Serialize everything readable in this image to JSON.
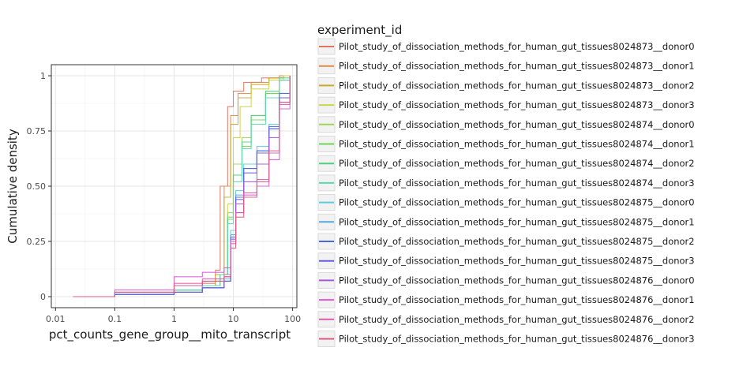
{
  "chart_data": {
    "type": "line",
    "title": "",
    "xlabel": "pct_counts_gene_group__mito_transcript",
    "ylabel": "Cumulative density",
    "x_scale": "log10",
    "xlim": [
      0.01,
      100
    ],
    "ylim": [
      0,
      1
    ],
    "x_ticks": [
      0.01,
      0.1,
      1,
      10,
      100
    ],
    "x_tick_labels": [
      "0.01",
      "0.1",
      "1",
      "10",
      "100"
    ],
    "y_ticks": [
      0,
      0.25,
      0.5,
      0.75,
      1
    ],
    "y_tick_labels": [
      "0",
      "0.25",
      "0.50",
      "0.75",
      "1"
    ],
    "grid": true,
    "legend_position": "right",
    "legend_title": "experiment_id",
    "series": [
      {
        "name": "Pilot_study_of_dissociation_methods_for_human_gut_tissues8024873__donor0",
        "color": "#e0745f",
        "x": [
          0.02,
          0.1,
          1,
          3,
          5,
          6,
          8,
          10,
          15,
          30,
          60,
          90
        ],
        "y": [
          0,
          0.01,
          0.03,
          0.06,
          0.12,
          0.5,
          0.86,
          0.93,
          0.97,
          0.99,
          1,
          1
        ]
      },
      {
        "name": "Pilot_study_of_dissociation_methods_for_human_gut_tissues8024873__donor1",
        "color": "#e08a4a",
        "x": [
          0.02,
          0.1,
          1,
          3,
          5,
          7,
          9,
          12,
          20,
          40,
          70,
          90
        ],
        "y": [
          0,
          0.01,
          0.03,
          0.05,
          0.1,
          0.5,
          0.82,
          0.92,
          0.97,
          0.99,
          1,
          1
        ]
      },
      {
        "name": "Pilot_study_of_dissociation_methods_for_human_gut_tissues8024873__donor2",
        "color": "#c9a82c",
        "x": [
          0.02,
          0.1,
          1,
          3,
          5,
          7,
          9,
          12,
          20,
          40,
          70,
          90
        ],
        "y": [
          0,
          0.01,
          0.03,
          0.05,
          0.1,
          0.45,
          0.78,
          0.9,
          0.96,
          0.99,
          1,
          1
        ]
      },
      {
        "name": "Pilot_study_of_dissociation_methods_for_human_gut_tissues8024873__donor3",
        "color": "#cbd44a",
        "x": [
          0.02,
          0.1,
          1,
          3,
          6,
          8,
          10,
          13,
          20,
          40,
          70,
          90
        ],
        "y": [
          0,
          0.01,
          0.03,
          0.05,
          0.1,
          0.42,
          0.72,
          0.86,
          0.94,
          0.98,
          1,
          1
        ]
      },
      {
        "name": "Pilot_study_of_dissociation_methods_for_human_gut_tissues8024874__donor0",
        "color": "#9fd45a",
        "x": [
          0.02,
          0.1,
          1,
          3,
          6,
          8,
          10,
          14,
          20,
          35,
          60,
          90
        ],
        "y": [
          0,
          0.01,
          0.03,
          0.05,
          0.1,
          0.38,
          0.6,
          0.72,
          0.82,
          0.92,
          0.98,
          1
        ]
      },
      {
        "name": "Pilot_study_of_dissociation_methods_for_human_gut_tissues8024874__donor1",
        "color": "#6ed45a",
        "x": [
          0.02,
          0.1,
          1,
          3,
          6,
          8,
          10,
          14,
          20,
          35,
          60,
          90
        ],
        "y": [
          0,
          0.01,
          0.03,
          0.05,
          0.1,
          0.36,
          0.55,
          0.68,
          0.8,
          0.92,
          0.98,
          1
        ]
      },
      {
        "name": "Pilot_study_of_dissociation_methods_for_human_gut_tissues8024874__donor2",
        "color": "#4fcf7f",
        "x": [
          0.02,
          0.1,
          1,
          3,
          6,
          8,
          10,
          14,
          20,
          35,
          60,
          90
        ],
        "y": [
          0,
          0.01,
          0.03,
          0.05,
          0.1,
          0.35,
          0.55,
          0.7,
          0.82,
          0.93,
          0.99,
          1
        ]
      },
      {
        "name": "Pilot_study_of_dissociation_methods_for_human_gut_tissues8024874__donor3",
        "color": "#5fd6b2",
        "x": [
          0.02,
          0.1,
          1,
          3,
          6,
          8,
          10,
          14,
          20,
          35,
          60,
          90
        ],
        "y": [
          0,
          0.01,
          0.03,
          0.05,
          0.1,
          0.33,
          0.52,
          0.67,
          0.78,
          0.9,
          0.98,
          1
        ]
      },
      {
        "name": "Pilot_study_of_dissociation_methods_for_human_gut_tissues8024875__donor0",
        "color": "#5ccbdb",
        "x": [
          0.02,
          0.1,
          1,
          3,
          7,
          9,
          11,
          15,
          25,
          40,
          60,
          90
        ],
        "y": [
          0,
          0.01,
          0.02,
          0.04,
          0.08,
          0.3,
          0.48,
          0.6,
          0.68,
          0.78,
          0.92,
          1
        ]
      },
      {
        "name": "Pilot_study_of_dissociation_methods_for_human_gut_tissues8024875__donor1",
        "color": "#5aa6dd",
        "x": [
          0.02,
          0.1,
          1,
          3,
          7,
          9,
          11,
          15,
          25,
          40,
          60,
          90
        ],
        "y": [
          0,
          0.01,
          0.02,
          0.04,
          0.07,
          0.28,
          0.46,
          0.58,
          0.66,
          0.76,
          0.9,
          1
        ]
      },
      {
        "name": "Pilot_study_of_dissociation_methods_for_human_gut_tissues8024875__donor2",
        "color": "#4a68d8",
        "x": [
          0.02,
          0.1,
          1,
          3,
          7,
          9,
          11,
          15,
          25,
          40,
          60,
          90
        ],
        "y": [
          0,
          0.01,
          0.02,
          0.04,
          0.07,
          0.27,
          0.45,
          0.58,
          0.66,
          0.77,
          0.92,
          1
        ]
      },
      {
        "name": "Pilot_study_of_dissociation_methods_for_human_gut_tissues8024875__donor3",
        "color": "#6a5ad9",
        "x": [
          0.02,
          0.1,
          1,
          3,
          7,
          9,
          11,
          15,
          25,
          40,
          60,
          90
        ],
        "y": [
          0,
          0.01,
          0.02,
          0.04,
          0.07,
          0.26,
          0.44,
          0.56,
          0.65,
          0.76,
          0.9,
          1
        ]
      },
      {
        "name": "Pilot_study_of_dissociation_methods_for_human_gut_tissues8024876__donor0",
        "color": "#a35ad8",
        "x": [
          0.02,
          0.1,
          1,
          3,
          7,
          9,
          11,
          15,
          25,
          40,
          60,
          90
        ],
        "y": [
          0,
          0.02,
          0.05,
          0.07,
          0.09,
          0.25,
          0.42,
          0.52,
          0.6,
          0.72,
          0.88,
          1
        ]
      },
      {
        "name": "Pilot_study_of_dissociation_methods_for_human_gut_tissues8024876__donor1",
        "color": "#d65ad6",
        "x": [
          0.02,
          0.1,
          1,
          3,
          7,
          9,
          11,
          15,
          25,
          40,
          60,
          90
        ],
        "y": [
          0,
          0.03,
          0.09,
          0.11,
          0.13,
          0.25,
          0.38,
          0.46,
          0.5,
          0.62,
          0.85,
          1
        ]
      },
      {
        "name": "Pilot_study_of_dissociation_methods_for_human_gut_tissues8024876__donor2",
        "color": "#df5aaf",
        "x": [
          0.02,
          0.1,
          1,
          3,
          7,
          9,
          11,
          15,
          25,
          40,
          60,
          90
        ],
        "y": [
          0,
          0.02,
          0.06,
          0.08,
          0.1,
          0.24,
          0.38,
          0.47,
          0.53,
          0.65,
          0.87,
          1
        ]
      },
      {
        "name": "Pilot_study_of_dissociation_methods_for_human_gut_tissues8024876__donor3",
        "color": "#d95a7f",
        "x": [
          0.02,
          0.1,
          1,
          3,
          7,
          9,
          11,
          15,
          25,
          40,
          60,
          90
        ],
        "y": [
          0,
          0.02,
          0.05,
          0.07,
          0.09,
          0.22,
          0.36,
          0.45,
          0.52,
          0.66,
          0.88,
          1
        ]
      }
    ]
  }
}
